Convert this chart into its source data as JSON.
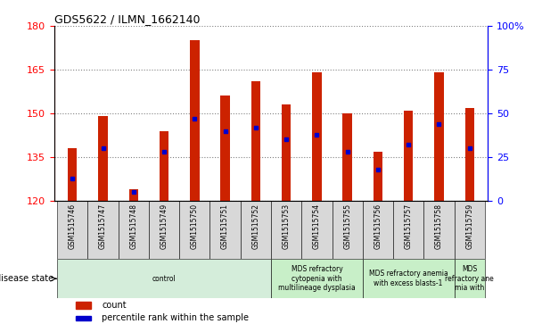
{
  "title": "GDS5622 / ILMN_1662140",
  "samples": [
    "GSM1515746",
    "GSM1515747",
    "GSM1515748",
    "GSM1515749",
    "GSM1515750",
    "GSM1515751",
    "GSM1515752",
    "GSM1515753",
    "GSM1515754",
    "GSM1515755",
    "GSM1515756",
    "GSM1515757",
    "GSM1515758",
    "GSM1515759"
  ],
  "counts": [
    138,
    149,
    124,
    144,
    175,
    156,
    161,
    153,
    164,
    150,
    137,
    151,
    164,
    152
  ],
  "percentile_ranks": [
    13,
    30,
    5,
    28,
    47,
    40,
    42,
    35,
    38,
    28,
    18,
    32,
    44,
    30
  ],
  "ymin": 120,
  "ymax": 180,
  "yticks_left": [
    120,
    135,
    150,
    165,
    180
  ],
  "yticks_right_pct": [
    0,
    25,
    50,
    75,
    100
  ],
  "ytick_right_labels": [
    "0",
    "25",
    "50",
    "75",
    "100%"
  ],
  "bar_color": "#cc2200",
  "dot_color": "#0000cc",
  "disease_groups": [
    {
      "label": "control",
      "start": 0,
      "end": 7,
      "color": "#d4edda"
    },
    {
      "label": "MDS refractory\ncytopenia with\nmultilineage dysplasia",
      "start": 7,
      "end": 10,
      "color": "#c8efc8"
    },
    {
      "label": "MDS refractory anemia\nwith excess blasts-1",
      "start": 10,
      "end": 13,
      "color": "#c8efc8"
    },
    {
      "label": "MDS\nrefractory ane\nmia with",
      "start": 13,
      "end": 14,
      "color": "#c8efc8"
    }
  ],
  "disease_state_label": "disease state",
  "legend_count_label": "count",
  "legend_percentile_label": "percentile rank within the sample",
  "bg_color": "#ffffff",
  "sample_box_color": "#d8d8d8",
  "bar_width": 0.3
}
